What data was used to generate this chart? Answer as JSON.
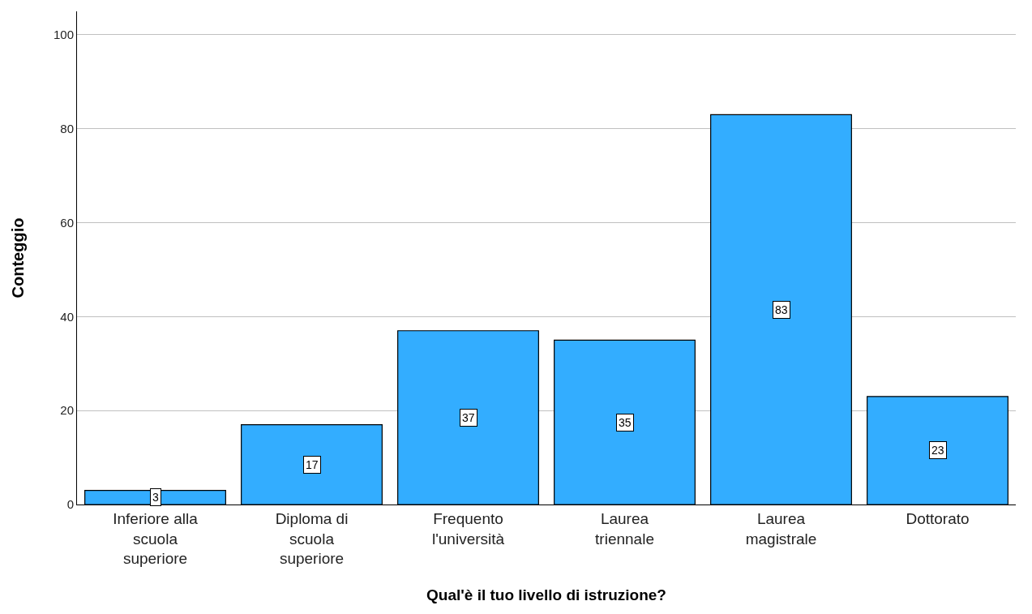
{
  "chart_data": {
    "type": "bar",
    "xlabel": "Qual'è il tuo livello di istruzione?",
    "ylabel": "Conteggio",
    "categories": [
      "Inferiore alla scuola superiore",
      "Diploma di scuola superiore",
      "Frequento l'università",
      "Laurea triennale",
      "Laurea magistrale",
      "Dottorato"
    ],
    "values": [
      3,
      17,
      37,
      35,
      83,
      23
    ],
    "color": "#33adff",
    "ylim": [
      0,
      105
    ],
    "yticks": [
      0,
      20,
      40,
      60,
      80,
      100
    ],
    "grid": "y",
    "data_labels": true
  }
}
